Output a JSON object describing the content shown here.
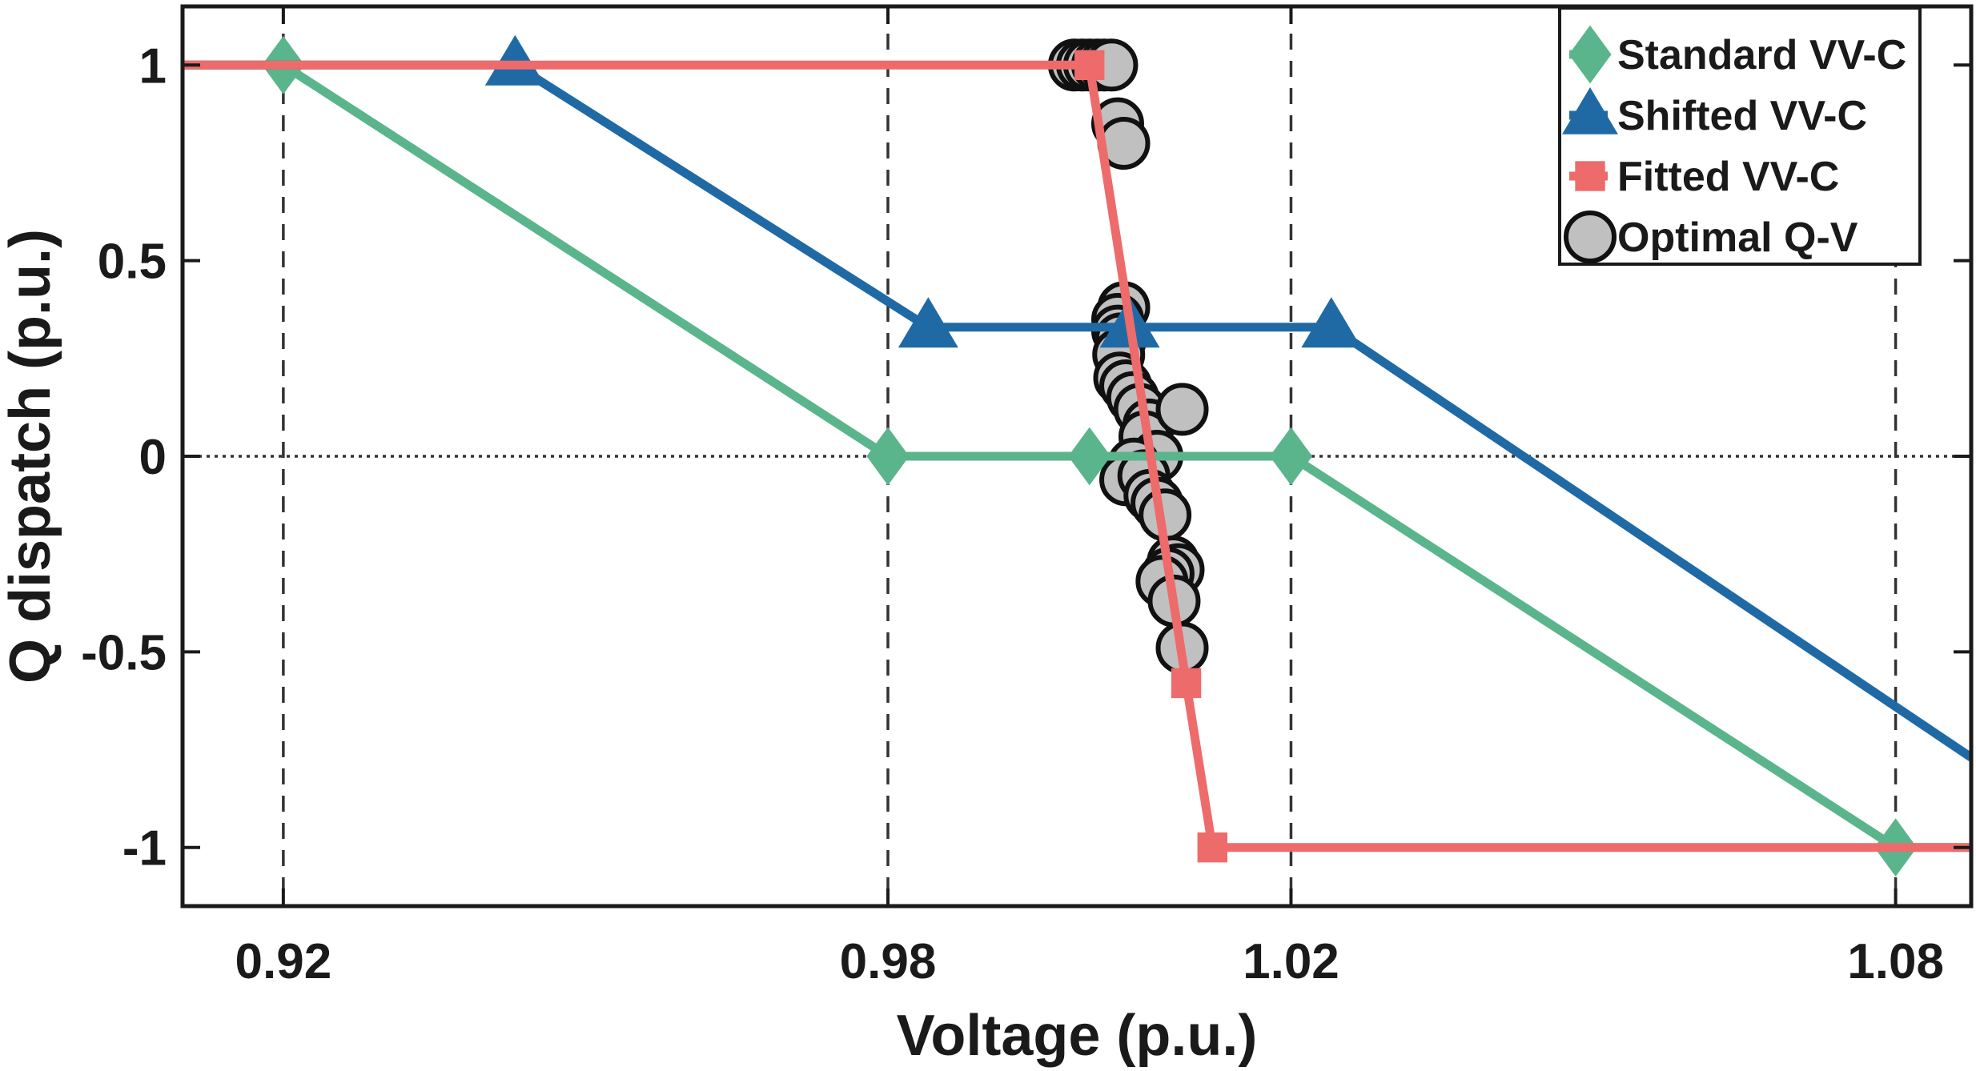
{
  "chart_data": {
    "type": "line",
    "title": "",
    "xlabel": "Voltage (p.u.)",
    "ylabel": "Q dispatch (p.u.)",
    "xlim": [
      0.91,
      1.0875
    ],
    "ylim": [
      -1.15,
      1.15
    ],
    "xticks": [
      0.92,
      0.98,
      1.02,
      1.08
    ],
    "xtick_labels": [
      "0.92",
      "0.98",
      "1.02",
      "1.08"
    ],
    "yticks": [
      1,
      0.5,
      0,
      -0.5,
      -1
    ],
    "ytick_labels": [
      "1",
      "0.5",
      "0",
      "-0.5",
      "-1"
    ],
    "grid": "dashed vertical lines at x ticks",
    "zero_line": "dotted horizontal line at y = 0",
    "legend_position": "top-right",
    "series": [
      {
        "name": "Standard VV-C",
        "marker": "diamond",
        "color": "#5bb58c",
        "x": [
          0.92,
          0.98,
          1.0,
          1.02,
          1.08
        ],
        "y": [
          1,
          0,
          0,
          0,
          -1
        ],
        "line_x": [
          0.91,
          0.92,
          0.98,
          1.02,
          1.08,
          1.0875
        ],
        "line_y": [
          1,
          1,
          0,
          0,
          -1,
          -1
        ]
      },
      {
        "name": "Shifted VV-C",
        "marker": "triangle",
        "color": "#1f6aa5",
        "x": [
          0.943,
          0.984,
          1.004,
          1.024
        ],
        "y": [
          1,
          0.33,
          0.33,
          0.33
        ],
        "line_x": [
          0.91,
          0.943,
          0.984,
          1.024,
          1.0875
        ],
        "line_y": [
          1,
          1,
          0.33,
          0.33,
          -0.77
        ]
      },
      {
        "name": "Fitted VV-C",
        "marker": "square",
        "color": "#ee6b6b",
        "x": [
          1.0,
          1.0096,
          1.0122
        ],
        "y": [
          1,
          -0.58,
          -1
        ],
        "line_x": [
          0.91,
          1.0,
          1.0096,
          1.0122,
          1.0875
        ],
        "line_y": [
          1,
          1,
          -0.58,
          -1,
          -1
        ]
      },
      {
        "name": "Optimal Q-V",
        "marker": "circle",
        "color": "#c0c0c0",
        "x": [
          0.9985,
          0.9993,
          1.0,
          1.0008,
          1.0015,
          1.0022,
          1.0028,
          1.0034,
          1.0034,
          1.0028,
          1.0028,
          1.0031,
          1.0029,
          1.003,
          1.0036,
          1.0043,
          1.005,
          1.0059,
          1.0055,
          1.0067,
          1.0044,
          1.0036,
          1.0054,
          1.006,
          1.0067,
          1.0075,
          1.0083,
          1.0088,
          1.0078,
          1.0072,
          1.0084,
          1.0092,
          1.0092
        ],
        "y": [
          1,
          1,
          1,
          1,
          1,
          1,
          0.85,
          0.8,
          0.38,
          0.35,
          0.32,
          0.3,
          0.26,
          0.2,
          0.18,
          0.15,
          0.12,
          0.08,
          0.05,
          0.0,
          -0.02,
          -0.06,
          -0.05,
          -0.1,
          -0.12,
          -0.15,
          -0.27,
          -0.29,
          -0.3,
          -0.32,
          -0.37,
          -0.49,
          0.12
        ]
      }
    ]
  }
}
